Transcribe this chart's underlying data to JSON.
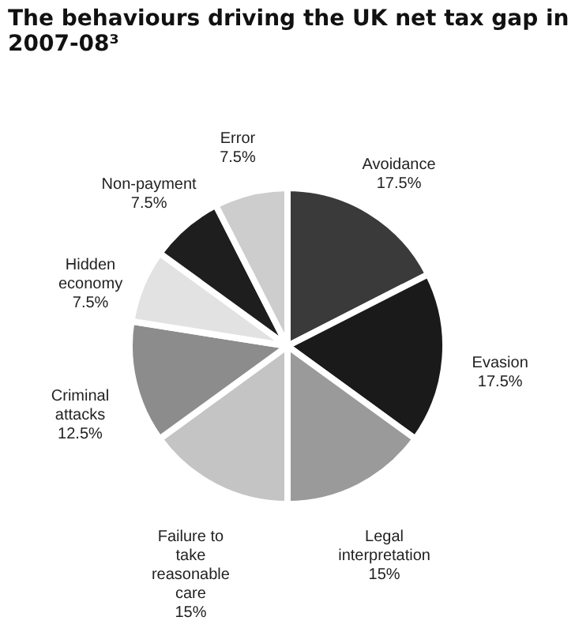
{
  "chart_data": {
    "type": "pie",
    "title": "The behaviours driving the UK net tax gap in 2007-08³",
    "categories": [
      "Avoidance",
      "Evasion",
      "Legal interpretation",
      "Failure to take reasonable care",
      "Criminal attacks",
      "Hidden economy",
      "Non-payment",
      "Error"
    ],
    "values": [
      17.5,
      17.5,
      15,
      15,
      12.5,
      7.5,
      7.5,
      7.5
    ],
    "value_labels": [
      "17.5%",
      "17.5%",
      "15%",
      "15%",
      "12.5%",
      "7.5%",
      "7.5%",
      "7.5%"
    ],
    "colors": [
      "#3a3a3a",
      "#1a1a1a",
      "#9a9a9a",
      "#c4c4c4",
      "#8c8c8c",
      "#e2e2e2",
      "#1e1e1e",
      "#cdcdcd"
    ],
    "legend": false
  }
}
